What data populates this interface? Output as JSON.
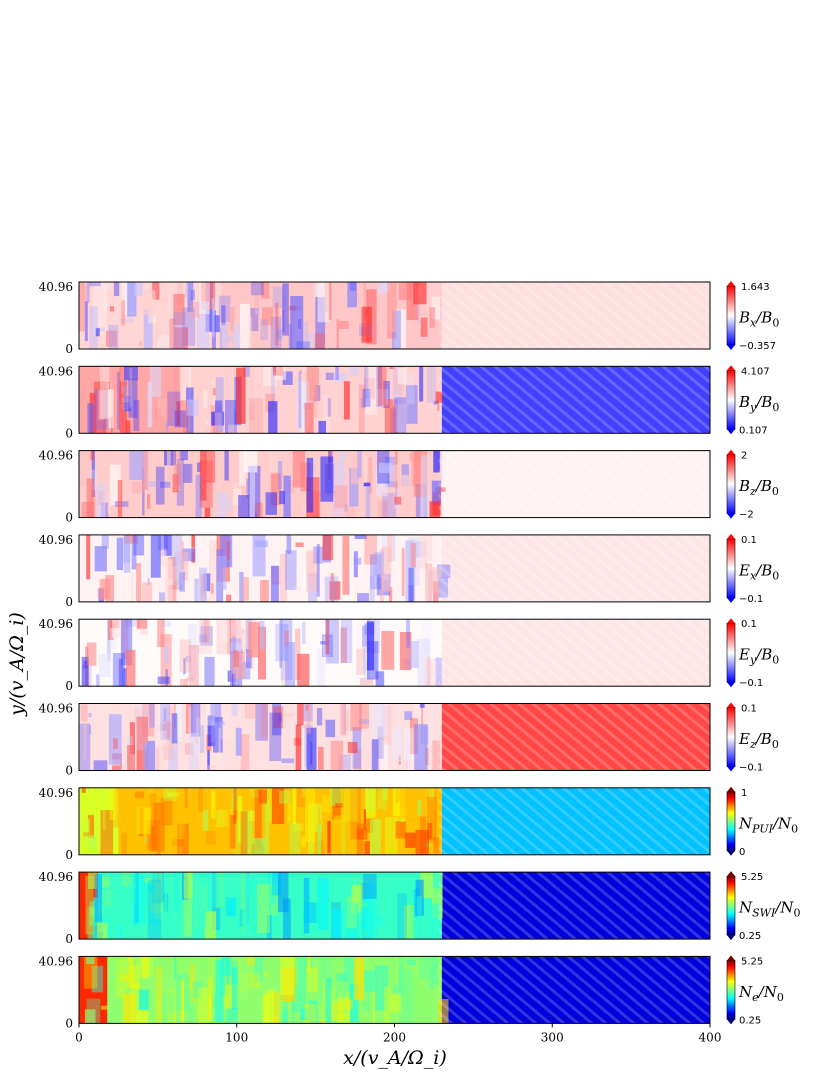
{
  "chart_data": {
    "type": "heatmap",
    "x_label": "x/(v_A/Ω_i)",
    "y_label": "y/(v_A/Ω_i)",
    "x_range": [
      0,
      400
    ],
    "x_ticks": [
      "0",
      "100",
      "200",
      "300",
      "400"
    ],
    "y_range": [
      0,
      40.96
    ],
    "y_ticks": [
      "0",
      "40.96"
    ],
    "shock_front_x": 228,
    "panels": [
      {
        "name": "bx",
        "quantity": "B",
        "sub": "x",
        "den": "B",
        "den_sub": "0",
        "colormap": "bwr",
        "cmin": "-0.357",
        "cmax": "1.643",
        "regions": [
          {
            "x": [
              0,
              90
            ],
            "level": 0.16
          },
          {
            "x": [
              90,
              230
            ],
            "level": 0.22
          },
          {
            "x": [
              230,
              400
            ],
            "level": 0.12
          }
        ]
      },
      {
        "name": "by",
        "quantity": "B",
        "sub": "y",
        "den": "B",
        "den_sub": "0",
        "colormap": "bwr",
        "cmin": "0.107",
        "cmax": "4.107",
        "regions": [
          {
            "x": [
              0,
              70
            ],
            "level": 0.35
          },
          {
            "x": [
              70,
              230
            ],
            "level": 0.18
          },
          {
            "x": [
              230,
              400
            ],
            "level": -0.75
          }
        ]
      },
      {
        "name": "bz",
        "quantity": "B",
        "sub": "z",
        "den": "B",
        "den_sub": "0",
        "colormap": "bwr",
        "cmin": "-2",
        "cmax": "2",
        "regions": [
          {
            "x": [
              0,
              230
            ],
            "level": 0.2
          },
          {
            "x": [
              230,
              400
            ],
            "level": 0.05
          }
        ]
      },
      {
        "name": "ex",
        "quantity": "E",
        "sub": "x",
        "den": "B",
        "den_sub": "0",
        "colormap": "bwr",
        "cmin": "-0.1",
        "cmax": "0.1",
        "regions": [
          {
            "x": [
              0,
              230
            ],
            "level": 0.05
          },
          {
            "x": [
              230,
              400
            ],
            "level": 0.1
          }
        ]
      },
      {
        "name": "ey",
        "quantity": "E",
        "sub": "y",
        "den": "B",
        "den_sub": "0",
        "colormap": "bwr",
        "cmin": "-0.1",
        "cmax": "0.1",
        "regions": [
          {
            "x": [
              0,
              230
            ],
            "level": 0.02
          },
          {
            "x": [
              230,
              400
            ],
            "level": 0.1
          }
        ]
      },
      {
        "name": "ez",
        "quantity": "E",
        "sub": "z",
        "den": "B",
        "den_sub": "0",
        "colormap": "bwr",
        "cmin": "-0.1",
        "cmax": "0.1",
        "regions": [
          {
            "x": [
              0,
              230
            ],
            "level": 0.12
          },
          {
            "x": [
              230,
              400
            ],
            "level": 0.72
          }
        ]
      },
      {
        "name": "npui",
        "quantity": "N",
        "sub": "PUI",
        "den": "N",
        "den_sub": "0",
        "colormap": "jet",
        "cmin": "0",
        "cmax": "1",
        "regions": [
          {
            "x": [
              0,
              25
            ],
            "level": 0.6
          },
          {
            "x": [
              25,
              230
            ],
            "level": 0.7
          },
          {
            "x": [
              230,
              400
            ],
            "level": 0.3
          }
        ]
      },
      {
        "name": "nswi",
        "quantity": "N",
        "sub": "SWI",
        "den": "N",
        "den_sub": "0",
        "colormap": "jet",
        "cmin": "0.25",
        "cmax": "5.25",
        "regions": [
          {
            "x": [
              0,
              12
            ],
            "level": 0.85
          },
          {
            "x": [
              12,
              230
            ],
            "level": 0.42
          },
          {
            "x": [
              230,
              400
            ],
            "level": 0.08
          }
        ]
      },
      {
        "name": "ne",
        "quantity": "N",
        "sub": "e",
        "den": "N",
        "den_sub": "0",
        "colormap": "jet",
        "cmin": "0.25",
        "cmax": "5.25",
        "regions": [
          {
            "x": [
              0,
              18
            ],
            "level": 0.85
          },
          {
            "x": [
              18,
              230
            ],
            "level": 0.52
          },
          {
            "x": [
              230,
              400
            ],
            "level": 0.08
          }
        ]
      }
    ]
  }
}
